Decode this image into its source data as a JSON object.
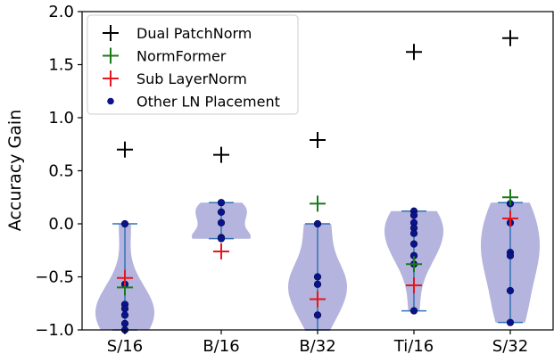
{
  "chart_data": {
    "type": "violin",
    "ylabel": "Accuracy Gain",
    "ylim": [
      -1.0,
      2.0
    ],
    "yticks": [
      -1.0,
      -0.5,
      0.0,
      0.5,
      1.0,
      1.5,
      2.0
    ],
    "ytick_labels": [
      "−1.0",
      "−0.5",
      "0.0",
      "0.5",
      "1.0",
      "1.5",
      "2.0"
    ],
    "categories": [
      "S/16",
      "B/16",
      "B/32",
      "Ti/16",
      "S/32"
    ],
    "legend": {
      "placement": "top-left",
      "entries": [
        {
          "label": "Dual PatchNorm",
          "marker": "plus",
          "color": "#000000"
        },
        {
          "label": "NormFormer",
          "marker": "plus",
          "color": "#1a7a1a"
        },
        {
          "label": "Sub LayerNorm",
          "marker": "plus",
          "color": "#e8161c"
        },
        {
          "label": "Other LN Placement",
          "marker": "dot",
          "color": "#0b138c"
        }
      ]
    },
    "series": [
      {
        "name": "Dual PatchNorm",
        "values": [
          0.7,
          0.65,
          0.79,
          1.62,
          1.75
        ]
      },
      {
        "name": "NormFormer",
        "values": [
          -0.6,
          null,
          0.19,
          -0.38,
          0.25
        ]
      },
      {
        "name": "Sub LayerNorm",
        "values": [
          -0.51,
          -0.26,
          -0.71,
          -0.58,
          0.05
        ]
      },
      {
        "name": "Other LN Placement",
        "values": [
          [
            0.0,
            -0.57,
            -0.76,
            -0.8,
            -0.86,
            -0.94,
            -1.0
          ],
          [
            0.2,
            0.11,
            0.01,
            -0.13,
            -0.14
          ],
          [
            0.0,
            -0.5,
            -0.57,
            -0.86
          ],
          [
            0.12,
            0.08,
            0.01,
            -0.04,
            -0.09,
            -0.19,
            -0.3,
            -0.38,
            -0.82
          ],
          [
            0.19,
            0.01,
            -0.27,
            -0.3,
            -0.63,
            -0.93
          ]
        ]
      }
    ],
    "violins": [
      {
        "min": -1.0,
        "max": 0.0,
        "median": -0.6
      },
      {
        "min": -0.14,
        "max": 0.2,
        "median": 0.0
      },
      {
        "min": -1.0,
        "max": 0.0,
        "median": -0.7
      },
      {
        "min": -0.82,
        "max": 0.12,
        "median": -0.38
      },
      {
        "min": -0.93,
        "max": 0.2,
        "median": -0.28
      }
    ],
    "colors": {
      "violin_fill": "#a7a7d8",
      "violin_line": "#3273b5",
      "dpn": "#000000",
      "normformer": "#1a7a1a",
      "sublayernorm": "#e8161c",
      "other": "#0b138c"
    }
  }
}
